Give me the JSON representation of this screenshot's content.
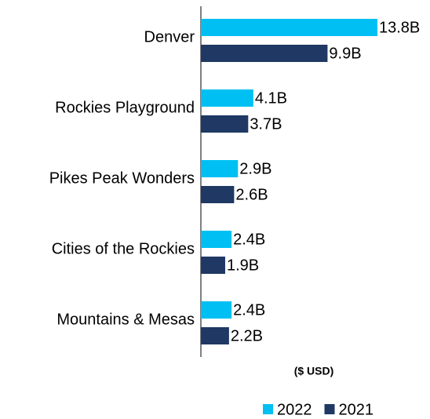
{
  "chart_data": {
    "type": "bar",
    "orientation": "horizontal",
    "categories": [
      "Denver",
      "Rockies Playground",
      "Pikes Peak Wonders",
      "Cities of the Rockies",
      "Mountains & Mesas"
    ],
    "series": [
      {
        "name": "2022",
        "color": "#00c0f3",
        "values": [
          13.8,
          4.1,
          2.9,
          2.4,
          2.4
        ],
        "value_labels": [
          "13.8B",
          "4.1B",
          "2.9B",
          "2.4B",
          "2.4B"
        ]
      },
      {
        "name": "2021",
        "color": "#1f3864",
        "values": [
          9.9,
          3.7,
          2.6,
          1.9,
          2.2
        ],
        "value_labels": [
          "9.9B",
          "3.7B",
          "2.6B",
          "1.9B",
          "2.2B"
        ]
      }
    ],
    "xlabel": "($ USD)",
    "legend": "bottom"
  }
}
